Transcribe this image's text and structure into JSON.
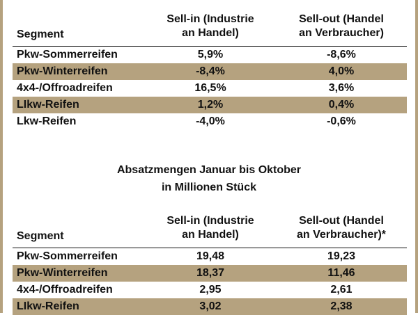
{
  "table1": {
    "header": {
      "segment": "Segment",
      "sell_in_line1": "Sell-in (Industrie",
      "sell_in_line2": "an Handel)",
      "sell_out_line1": "Sell-out (Handel",
      "sell_out_line2": "an Verbraucher)"
    },
    "rows": [
      {
        "segment": "Pkw-Sommerreifen",
        "sell_in": "5,9%",
        "sell_out": "-8,6%"
      },
      {
        "segment": "Pkw-Winterreifen",
        "sell_in": "-8,4%",
        "sell_out": "4,0%"
      },
      {
        "segment": "4x4-/Offroadreifen",
        "sell_in": "16,5%",
        "sell_out": "3,6%"
      },
      {
        "segment": "LIkw-Reifen",
        "sell_in": "1,2%",
        "sell_out": "0,4%"
      },
      {
        "segment": "Lkw-Reifen",
        "sell_in": "-4,0%",
        "sell_out": "-0,6%"
      }
    ]
  },
  "caption": {
    "line1": "Absatzmengen Januar bis Oktober",
    "line2": "in Millionen Stück"
  },
  "table2": {
    "header": {
      "segment": "Segment",
      "sell_in_line1": "Sell-in (Industrie",
      "sell_in_line2": "an Handel)",
      "sell_out_line1": "Sell-out (Handel",
      "sell_out_line2": "an Verbraucher)*"
    },
    "rows": [
      {
        "segment": "Pkw-Sommerreifen",
        "sell_in": "19,48",
        "sell_out": "19,23"
      },
      {
        "segment": "Pkw-Winterreifen",
        "sell_in": "18,37",
        "sell_out": "11,46"
      },
      {
        "segment": "4x4-/Offroadreifen",
        "sell_in": "2,95",
        "sell_out": "2,61"
      },
      {
        "segment": "LIkw-Reifen",
        "sell_in": "3,02",
        "sell_out": "2,38"
      }
    ]
  },
  "colors": {
    "shade": "#b5a27f",
    "text": "#111111"
  }
}
